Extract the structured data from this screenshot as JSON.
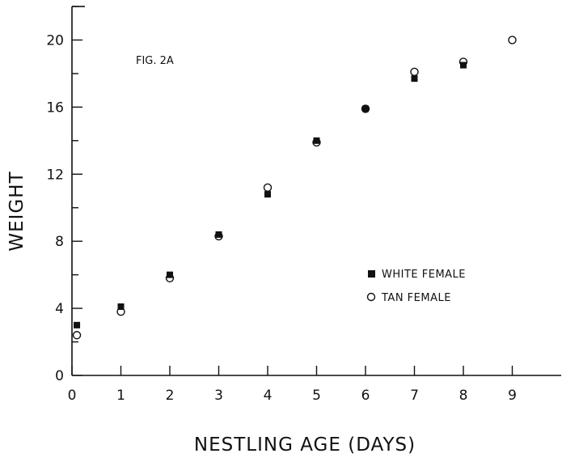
{
  "chart_data": {
    "type": "scatter",
    "annotation": "FIG. 2A",
    "xlabel": "NESTLING AGE (DAYS)",
    "ylabel": "WEIGHT",
    "xlim": [
      0,
      10
    ],
    "ylim": [
      0,
      22
    ],
    "x_ticks": [
      0,
      1,
      2,
      3,
      4,
      5,
      6,
      7,
      8,
      9
    ],
    "y_ticks": [
      0,
      4,
      8,
      12,
      16,
      20
    ],
    "grid": false,
    "legend_position": "right",
    "series": [
      {
        "name": "WHITE FEMALE",
        "marker": "filled-square",
        "x": [
          0.1,
          1,
          2,
          3,
          4,
          5,
          6,
          7,
          8
        ],
        "y": [
          3.0,
          4.1,
          6.0,
          8.4,
          10.8,
          14.0,
          15.9,
          17.7,
          18.5
        ]
      },
      {
        "name": "TAN FEMALE",
        "marker": "open-circle",
        "x": [
          0.1,
          1,
          2,
          3,
          4,
          5,
          6,
          7,
          8,
          9
        ],
        "y": [
          2.4,
          3.8,
          5.8,
          8.3,
          11.2,
          13.9,
          15.9,
          18.1,
          18.7,
          20.0
        ]
      }
    ]
  }
}
